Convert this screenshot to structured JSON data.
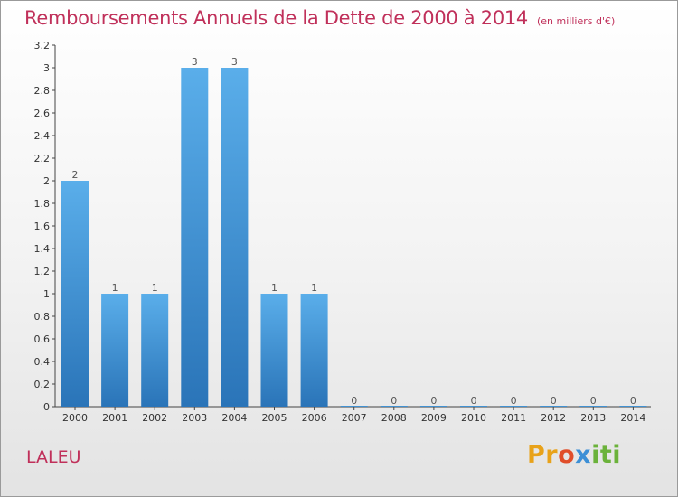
{
  "header": {
    "title": "Remboursements Annuels de la Dette de 2000 à 2014",
    "subtitle": "(en milliers d'€)"
  },
  "footer": {
    "commune": "LALEU",
    "logo_parts": [
      "Pr",
      "o",
      "x",
      "iti"
    ]
  },
  "chart_data": {
    "type": "bar",
    "title": "Remboursements Annuels de la Dette de 2000 à 2014",
    "subtitle": "(en milliers d'€)",
    "categories": [
      "2000",
      "2001",
      "2002",
      "2003",
      "2004",
      "2005",
      "2006",
      "2007",
      "2008",
      "2009",
      "2010",
      "2011",
      "2012",
      "2013",
      "2014"
    ],
    "values": [
      2,
      1,
      1,
      3,
      3,
      1,
      1,
      0,
      0,
      0,
      0,
      0,
      0,
      0,
      0
    ],
    "data_labels": [
      "2",
      "1",
      "1",
      "3",
      "3",
      "1",
      "1",
      "0",
      "0",
      "0",
      "0",
      "0",
      "0",
      "0",
      "0"
    ],
    "ylim": [
      0,
      3.2
    ],
    "yticks": [
      0,
      0.2,
      0.4,
      0.6,
      0.8,
      1,
      1.2,
      1.4,
      1.6,
      1.8,
      2,
      2.2,
      2.4,
      2.6,
      2.8,
      3,
      3.2
    ],
    "ytick_labels": [
      "0",
      "0.2",
      "0.4",
      "0.6",
      "0.8",
      "1",
      "1.2",
      "1.4",
      "1.6",
      "1.8",
      "2",
      "2.2",
      "2.4",
      "2.6",
      "2.8",
      "3",
      "3.2"
    ],
    "grid": false,
    "bar_color": "#3d8fd8",
    "bar_color_light": "#5aaeea",
    "bar_color_dark": "#2a74b8"
  }
}
